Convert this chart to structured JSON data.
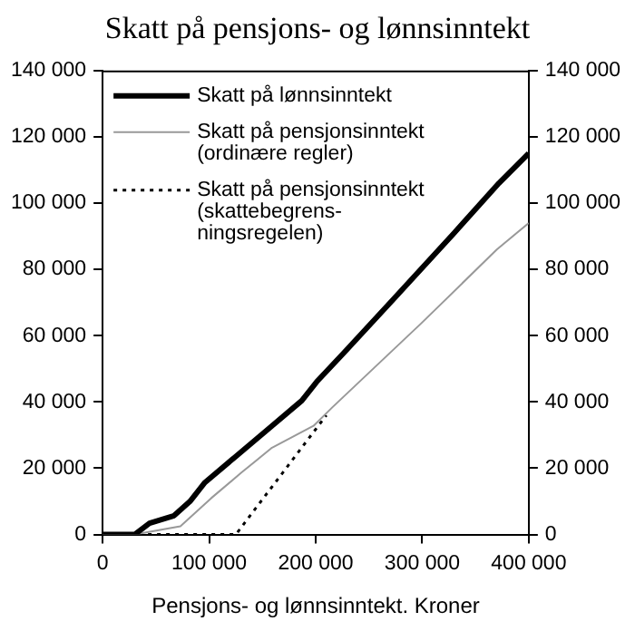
{
  "chart_data": {
    "type": "line",
    "title": "Skatt på pensjons- og lønnsinntekt",
    "xlabel": "Pensjons- og lønnsinntekt. Kroner",
    "xlim": [
      0,
      400000
    ],
    "xticks": [
      {
        "value": 0,
        "label": "0"
      },
      {
        "value": 100000,
        "label": "100 000"
      },
      {
        "value": 200000,
        "label": "200 000"
      },
      {
        "value": 300000,
        "label": "300 000"
      },
      {
        "value": 400000,
        "label": "400 000"
      }
    ],
    "ylim": [
      0,
      140000
    ],
    "yticks": [
      {
        "value": 0,
        "label": "0"
      },
      {
        "value": 20000,
        "label": "20 000"
      },
      {
        "value": 40000,
        "label": "40 000"
      },
      {
        "value": 60000,
        "label": "60 000"
      },
      {
        "value": 80000,
        "label": "80 000"
      },
      {
        "value": 100000,
        "label": "100 000"
      },
      {
        "value": 120000,
        "label": "120 000"
      },
      {
        "value": 140000,
        "label": "140 000"
      }
    ],
    "y2lim": [
      0,
      140000
    ],
    "y2ticks": [
      {
        "value": 0,
        "label": "0"
      },
      {
        "value": 20000,
        "label": "20 000"
      },
      {
        "value": 40000,
        "label": "40 000"
      },
      {
        "value": 60000,
        "label": "60 000"
      },
      {
        "value": 80000,
        "label": "80 000"
      },
      {
        "value": 100000,
        "label": "100 000"
      },
      {
        "value": 120000,
        "label": "120 000"
      },
      {
        "value": 140000,
        "label": "140 000"
      }
    ],
    "grid": false,
    "legend": "top left",
    "marker": "none",
    "series": [
      {
        "name": "Skatt på lønnsinntekt",
        "color": "#000000",
        "line_style": "solid",
        "x": [
          0,
          30000,
          44000,
          67000,
          82000,
          96000,
          124000,
          159000,
          187000,
          201000,
          227000,
          273000,
          330000,
          372000,
          400000
        ],
        "values": [
          0,
          0,
          3400,
          5700,
          10000,
          15700,
          23300,
          32800,
          40400,
          46100,
          55000,
          71000,
          91000,
          106000,
          115000
        ]
      },
      {
        "name": "Skatt på pensjonsinntekt (ordinære regler)",
        "color": "#999999",
        "line_style": "solid",
        "x": [
          0,
          30000,
          73000,
          102000,
          130000,
          159000,
          198000,
          216000,
          300000,
          370000,
          400000
        ],
        "values": [
          0,
          0,
          2500,
          11000,
          18600,
          26200,
          32800,
          38500,
          64000,
          86000,
          94000
        ]
      },
      {
        "name": "Skatt på pensjonsinntekt (skattebegrens-ningsregelen)",
        "color": "#000000",
        "line_style": "dotted",
        "x": [
          0,
          125000,
          210000
        ],
        "values": [
          0,
          0,
          36000
        ]
      }
    ]
  }
}
